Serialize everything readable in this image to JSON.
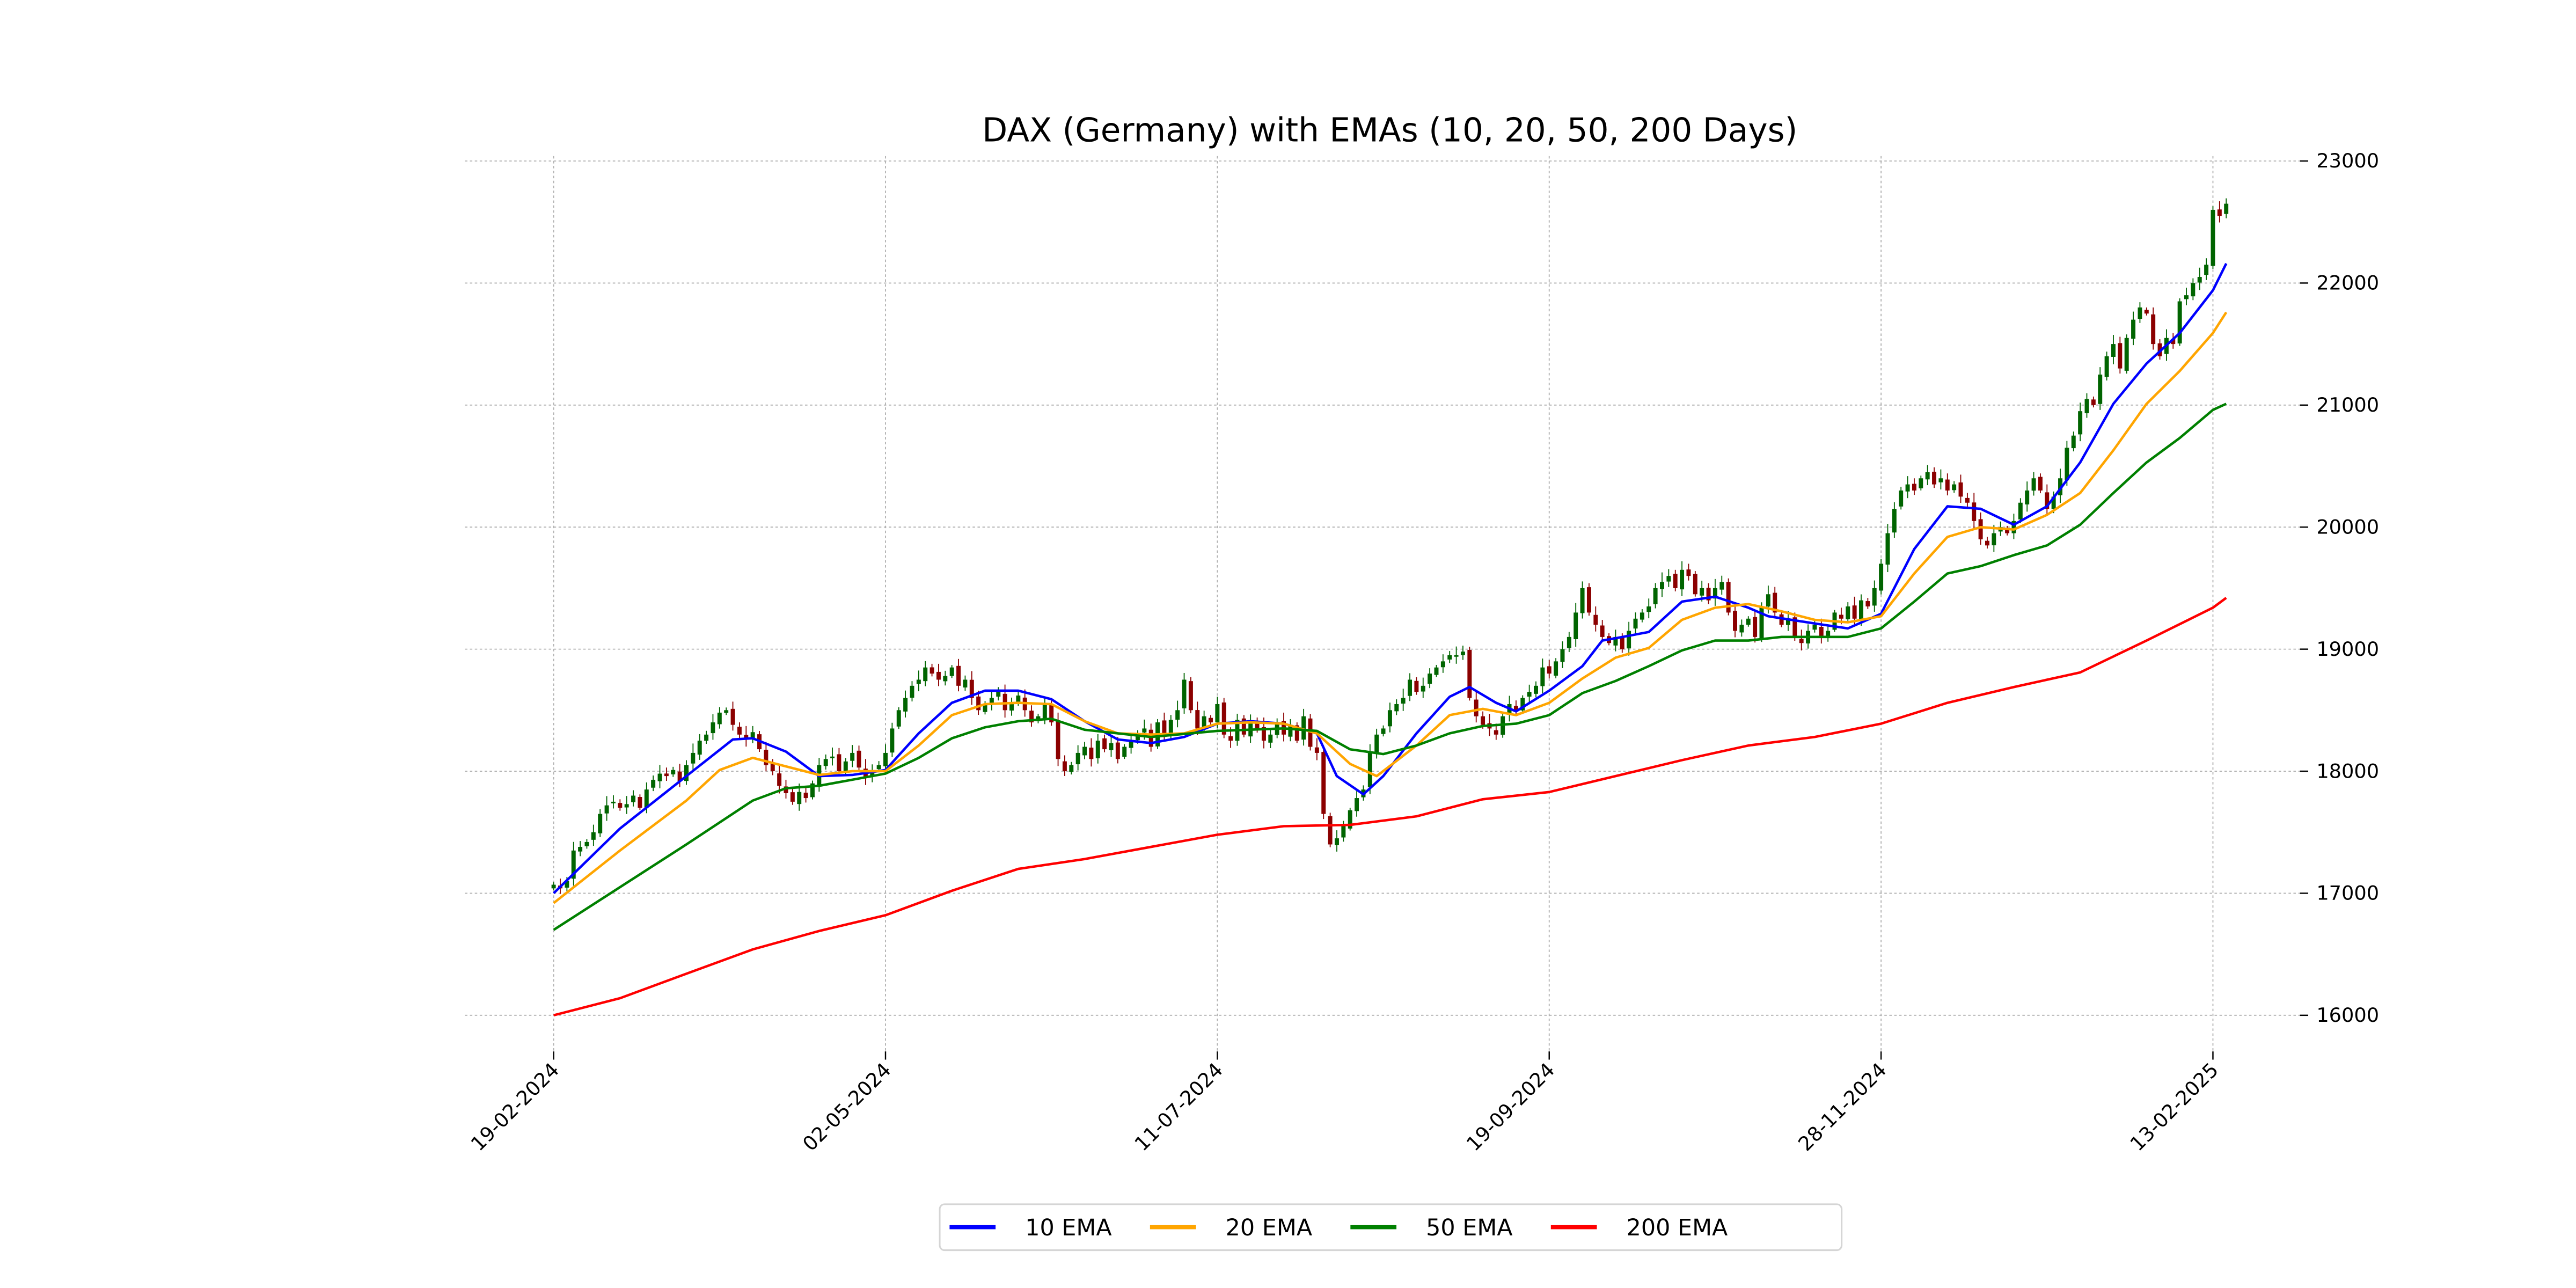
{
  "chart_data": {
    "type": "candlestick-line",
    "title": "DAX (Germany) with EMAs (10, 20, 50, 200 Days)",
    "xlabel": "",
    "ylabel": "",
    "ylim": [
      16000,
      23000
    ],
    "y_ticks": [
      16000,
      17000,
      18000,
      19000,
      20000,
      21000,
      22000,
      23000
    ],
    "y_tick_labels": [
      "16000",
      "17000",
      "18000",
      "19000",
      "20000",
      "21000",
      "22000",
      "23000"
    ],
    "x_ticks_day_index": [
      0,
      50,
      100,
      150,
      200,
      250
    ],
    "x_tick_labels": [
      "19-02-2024",
      "02-05-2024",
      "11-07-2024",
      "19-09-2024",
      "28-11-2024",
      "13-02-2025"
    ],
    "grid": true,
    "legend_position": "bottom-center",
    "up_color": "#006400",
    "down_color": "#8b0000",
    "close": [
      17070,
      17040,
      17100,
      17350,
      17380,
      17420,
      17500,
      17650,
      17720,
      17750,
      17700,
      17730,
      17800,
      17700,
      17850,
      17930,
      17980,
      17960,
      18010,
      17920,
      18050,
      18150,
      18250,
      18300,
      18400,
      18480,
      18500,
      18380,
      18300,
      18260,
      18320,
      18180,
      18050,
      18000,
      17880,
      17820,
      17750,
      17830,
      17780,
      17900,
      18050,
      18100,
      18120,
      18000,
      18080,
      18150,
      18030,
      17950,
      18000,
      18050,
      18150,
      18350,
      18500,
      18600,
      18700,
      18750,
      18850,
      18800,
      18750,
      18780,
      18850,
      18700,
      18750,
      18600,
      18500,
      18550,
      18600,
      18650,
      18500,
      18550,
      18620,
      18500,
      18400,
      18450,
      18550,
      18400,
      18100,
      18000,
      18050,
      18150,
      18200,
      18100,
      18250,
      18180,
      18230,
      18100,
      18200,
      18250,
      18300,
      18350,
      18200,
      18400,
      18300,
      18420,
      18500,
      18750,
      18500,
      18350,
      18450,
      18400,
      18550,
      18300,
      18250,
      18420,
      18300,
      18400,
      18350,
      18250,
      18300,
      18400,
      18300,
      18380,
      18250,
      18450,
      18200,
      18150,
      17650,
      17400,
      17450,
      17550,
      17680,
      17780,
      17850,
      18150,
      18300,
      18350,
      18500,
      18550,
      18600,
      18750,
      18650,
      18700,
      18800,
      18850,
      18900,
      18950,
      18950,
      18980,
      18600,
      18450,
      18380,
      18350,
      18300,
      18450,
      18550,
      18500,
      18600,
      18650,
      18700,
      18850,
      18800,
      18900,
      19000,
      19100,
      19300,
      19500,
      19300,
      19200,
      19100,
      19050,
      19100,
      19000,
      19150,
      19250,
      19300,
      19350,
      19500,
      19550,
      19600,
      19500,
      19650,
      19600,
      19450,
      19500,
      19400,
      19500,
      19550,
      19300,
      19150,
      19200,
      19250,
      19100,
      19350,
      19450,
      19300,
      19200,
      19250,
      19100,
      19050,
      19150,
      19200,
      19100,
      19150,
      19300,
      19250,
      19350,
      19250,
      19400,
      19350,
      19500,
      19700,
      19950,
      20150,
      20300,
      20350,
      20300,
      20400,
      20450,
      20350,
      20400,
      20300,
      20350,
      20250,
      20200,
      20050,
      19900,
      19850,
      19950,
      20000,
      19950,
      20050,
      20200,
      20300,
      20400,
      20300,
      20150,
      20250,
      20400,
      20650,
      20750,
      20950,
      21050,
      21000,
      21250,
      21400,
      21500,
      21300,
      21550,
      21700,
      21800,
      21750,
      21500,
      21400,
      21550,
      21500,
      21850,
      21900,
      22000,
      22050,
      22150,
      22600,
      22550,
      22650
    ],
    "series": [
      {
        "name": "10 EMA",
        "color": "#0000ff",
        "x": [
          0,
          10,
          20,
          27,
          30,
          35,
          40,
          45,
          50,
          55,
          60,
          65,
          70,
          75,
          80,
          85,
          90,
          95,
          100,
          105,
          110,
          115,
          118,
          122,
          125,
          130,
          135,
          138,
          142,
          145,
          150,
          155,
          158,
          160,
          165,
          170,
          175,
          180,
          183,
          190,
          195,
          200,
          205,
          210,
          215,
          220,
          225,
          230,
          235,
          240,
          245,
          250,
          252
        ],
        "values": [
          17000,
          17530,
          17960,
          18260,
          18270,
          18160,
          17960,
          17970,
          18010,
          18310,
          18560,
          18660,
          18660,
          18590,
          18410,
          18260,
          18230,
          18280,
          18390,
          18410,
          18390,
          18310,
          17960,
          17810,
          17960,
          18310,
          18610,
          18690,
          18560,
          18490,
          18660,
          18860,
          19070,
          19090,
          19140,
          19390,
          19430,
          19340,
          19270,
          19210,
          19170,
          19290,
          19820,
          20170,
          20150,
          20020,
          20170,
          20530,
          21010,
          21340,
          21590,
          21940,
          22160
        ]
      },
      {
        "name": "20 EMA",
        "color": "#ffa500",
        "x": [
          0,
          10,
          20,
          25,
          30,
          40,
          45,
          50,
          55,
          60,
          65,
          70,
          75,
          80,
          85,
          90,
          95,
          100,
          105,
          110,
          115,
          120,
          124,
          130,
          135,
          140,
          145,
          150,
          155,
          160,
          165,
          170,
          175,
          180,
          185,
          190,
          195,
          200,
          205,
          210,
          215,
          220,
          225,
          230,
          235,
          240,
          245,
          250,
          252
        ],
        "values": [
          16920,
          17350,
          17760,
          18010,
          18110,
          17970,
          18000,
          18000,
          18210,
          18460,
          18550,
          18560,
          18550,
          18410,
          18310,
          18300,
          18310,
          18390,
          18400,
          18390,
          18310,
          18060,
          17960,
          18210,
          18460,
          18510,
          18460,
          18560,
          18760,
          18930,
          19010,
          19240,
          19340,
          19370,
          19310,
          19240,
          19220,
          19270,
          19620,
          19920,
          20000,
          19980,
          20100,
          20280,
          20630,
          21010,
          21280,
          21590,
          21760
        ]
      },
      {
        "name": "50 EMA",
        "color": "#008000",
        "x": [
          0,
          10,
          20,
          30,
          35,
          40,
          45,
          50,
          55,
          60,
          65,
          70,
          75,
          80,
          90,
          100,
          110,
          115,
          120,
          125,
          130,
          135,
          140,
          145,
          150,
          155,
          160,
          165,
          170,
          175,
          180,
          185,
          190,
          195,
          200,
          205,
          210,
          215,
          220,
          225,
          230,
          235,
          240,
          245,
          250,
          252
        ],
        "values": [
          16700,
          17050,
          17400,
          17760,
          17860,
          17880,
          17930,
          17980,
          18110,
          18270,
          18360,
          18410,
          18430,
          18340,
          18280,
          18330,
          18350,
          18330,
          18180,
          18140,
          18210,
          18310,
          18370,
          18390,
          18460,
          18640,
          18740,
          18860,
          18990,
          19070,
          19070,
          19100,
          19100,
          19100,
          19170,
          19390,
          19620,
          19680,
          19770,
          19850,
          20020,
          20280,
          20530,
          20730,
          20960,
          21010
        ]
      },
      {
        "name": "200 EMA",
        "color": "#ff0000",
        "x": [
          0,
          10,
          20,
          30,
          40,
          50,
          60,
          70,
          80,
          90,
          100,
          110,
          120,
          130,
          140,
          150,
          160,
          170,
          180,
          190,
          200,
          210,
          220,
          230,
          240,
          250,
          252
        ],
        "values": [
          16000,
          16140,
          16340,
          16540,
          16690,
          16820,
          17020,
          17200,
          17280,
          17380,
          17480,
          17550,
          17560,
          17630,
          17770,
          17830,
          17960,
          18090,
          18210,
          18280,
          18390,
          18560,
          18690,
          18810,
          19070,
          19340,
          19420
        ]
      }
    ]
  }
}
